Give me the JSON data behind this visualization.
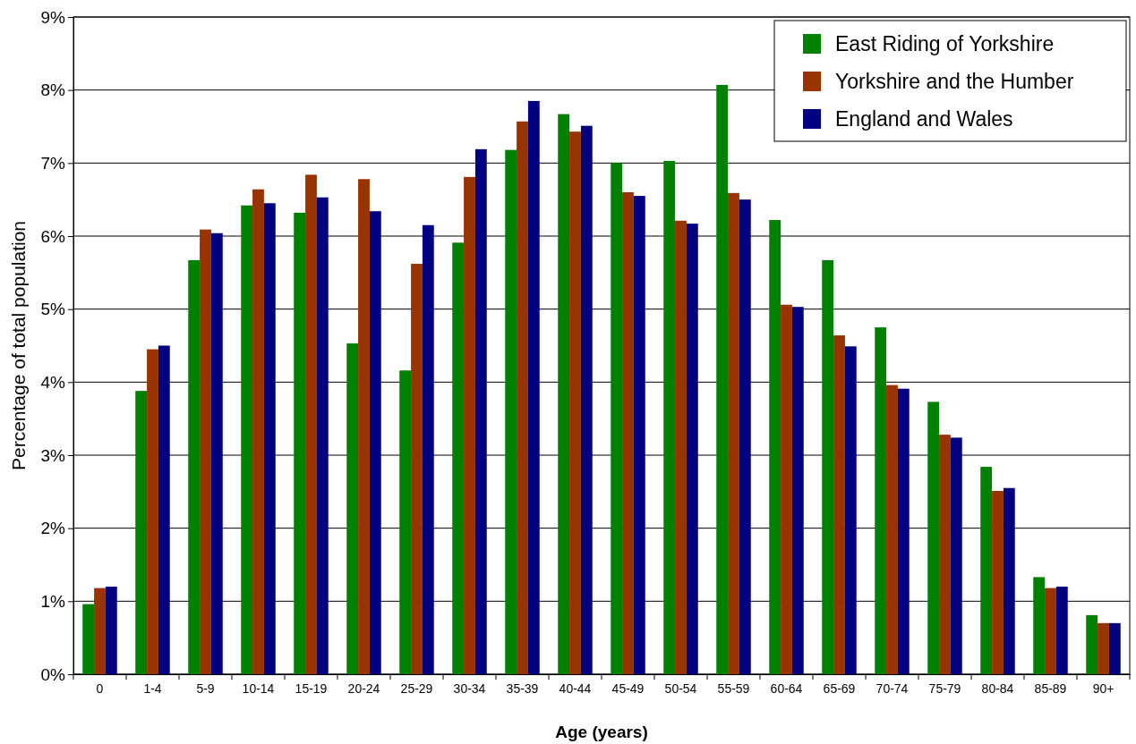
{
  "chart_data": {
    "type": "bar",
    "xlabel": "Age (years)",
    "ylabel": "Percentage of total population",
    "categories": [
      "0",
      "1-4",
      "5-9",
      "10-14",
      "15-19",
      "20-24",
      "25-29",
      "30-34",
      "35-39",
      "40-44",
      "45-49",
      "50-54",
      "55-59",
      "60-64",
      "65-69",
      "70-74",
      "75-79",
      "80-84",
      "85-89",
      "90+"
    ],
    "series": [
      {
        "name": "East Riding of Yorkshire",
        "color": "#008000",
        "values": [
          0.96,
          3.88,
          5.67,
          6.42,
          6.32,
          4.53,
          4.16,
          5.91,
          7.18,
          7.67,
          7.0,
          7.03,
          8.07,
          6.22,
          5.67,
          4.75,
          3.73,
          2.84,
          1.33,
          0.81
        ]
      },
      {
        "name": "Yorkshire and the Humber",
        "color": "#993300",
        "values": [
          1.18,
          4.45,
          6.09,
          6.64,
          6.84,
          6.78,
          5.62,
          6.81,
          7.57,
          7.43,
          6.6,
          6.21,
          6.59,
          5.06,
          4.64,
          3.96,
          3.28,
          2.51,
          1.18,
          0.7
        ]
      },
      {
        "name": "England and Wales",
        "color": "#000080",
        "values": [
          1.2,
          4.5,
          6.04,
          6.45,
          6.53,
          6.34,
          6.15,
          7.19,
          7.85,
          7.51,
          6.55,
          6.17,
          6.5,
          5.03,
          4.49,
          3.91,
          3.24,
          2.55,
          1.2,
          0.7
        ]
      }
    ],
    "ylim": [
      0,
      9
    ],
    "yticks": [
      {
        "value": 0,
        "label": "0%"
      },
      {
        "value": 1,
        "label": "1%"
      },
      {
        "value": 2,
        "label": "2%"
      },
      {
        "value": 3,
        "label": "3%"
      },
      {
        "value": 4,
        "label": "4%"
      },
      {
        "value": 5,
        "label": "5%"
      },
      {
        "value": 6,
        "label": "6%"
      },
      {
        "value": 7,
        "label": "7%"
      },
      {
        "value": 8,
        "label": "8%"
      },
      {
        "value": 9,
        "label": "9%"
      }
    ],
    "grid": "y",
    "legend": "top right"
  }
}
